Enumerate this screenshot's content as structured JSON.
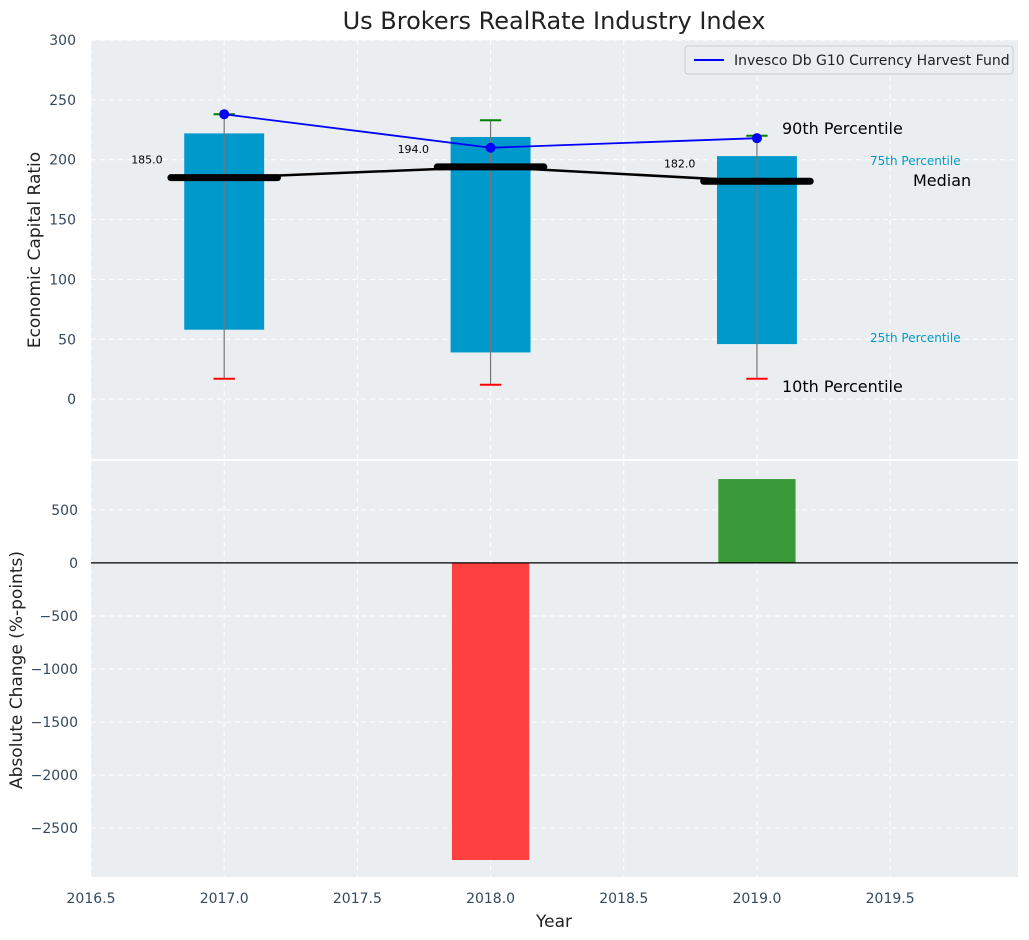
{
  "chart_data": [
    {
      "type": "box",
      "title": "Us Brokers RealRate Industry Index",
      "xlabel": "",
      "ylabel": "Economic Capital Ratio",
      "ylim": [
        -50,
        300
      ],
      "y_ticks": [
        0,
        50,
        100,
        150,
        200,
        250,
        300
      ],
      "grid": true,
      "legend_position": "top-right",
      "categories": [
        2017,
        2018,
        2019
      ],
      "boxes": [
        {
          "x": 2017,
          "p10": 17,
          "p25": 58,
          "median": 185,
          "p75": 222,
          "p90": 238
        },
        {
          "x": 2018,
          "p10": 12,
          "p25": 39,
          "median": 194,
          "p75": 219,
          "p90": 233
        },
        {
          "x": 2019,
          "p10": 17,
          "p25": 46,
          "median": 182,
          "p75": 203,
          "p90": 220
        }
      ],
      "median_labels": [
        "185.0",
        "194.0",
        "182.0"
      ],
      "series": [
        {
          "name": "Invesco Db G10 Currency Harvest Fund",
          "x": [
            2017,
            2018,
            2019
          ],
          "values": [
            238,
            210,
            218
          ],
          "color": "#0000ff"
        }
      ],
      "annotations": {
        "p90": "90th Percentile",
        "p75": "75th Percentile",
        "median": "Median",
        "p25": "25th Percentile",
        "p10": "10th Percentile"
      },
      "colors": {
        "box": "#0099cc",
        "p10_cap": "#ff0000",
        "p90_cap": "#008000",
        "median": "#000000"
      }
    },
    {
      "type": "bar",
      "ylabel": "Absolute Change (%-points)",
      "xlabel": "Year",
      "categories": [
        2017,
        2018,
        2019
      ],
      "values": [
        0,
        -2800,
        790
      ],
      "ylim": [
        -2960,
        960
      ],
      "y_ticks": [
        -2500,
        -2000,
        -1500,
        -1000,
        -500,
        0,
        500
      ],
      "xlim": [
        2016.5,
        2019.98
      ],
      "x_ticks": [
        "2016.5",
        "2017.0",
        "2017.5",
        "2018.0",
        "2018.5",
        "2019.0",
        "2019.5"
      ],
      "grid": true,
      "colors": {
        "negative": "#ff4040",
        "positive": "#3a9a3a"
      }
    }
  ]
}
